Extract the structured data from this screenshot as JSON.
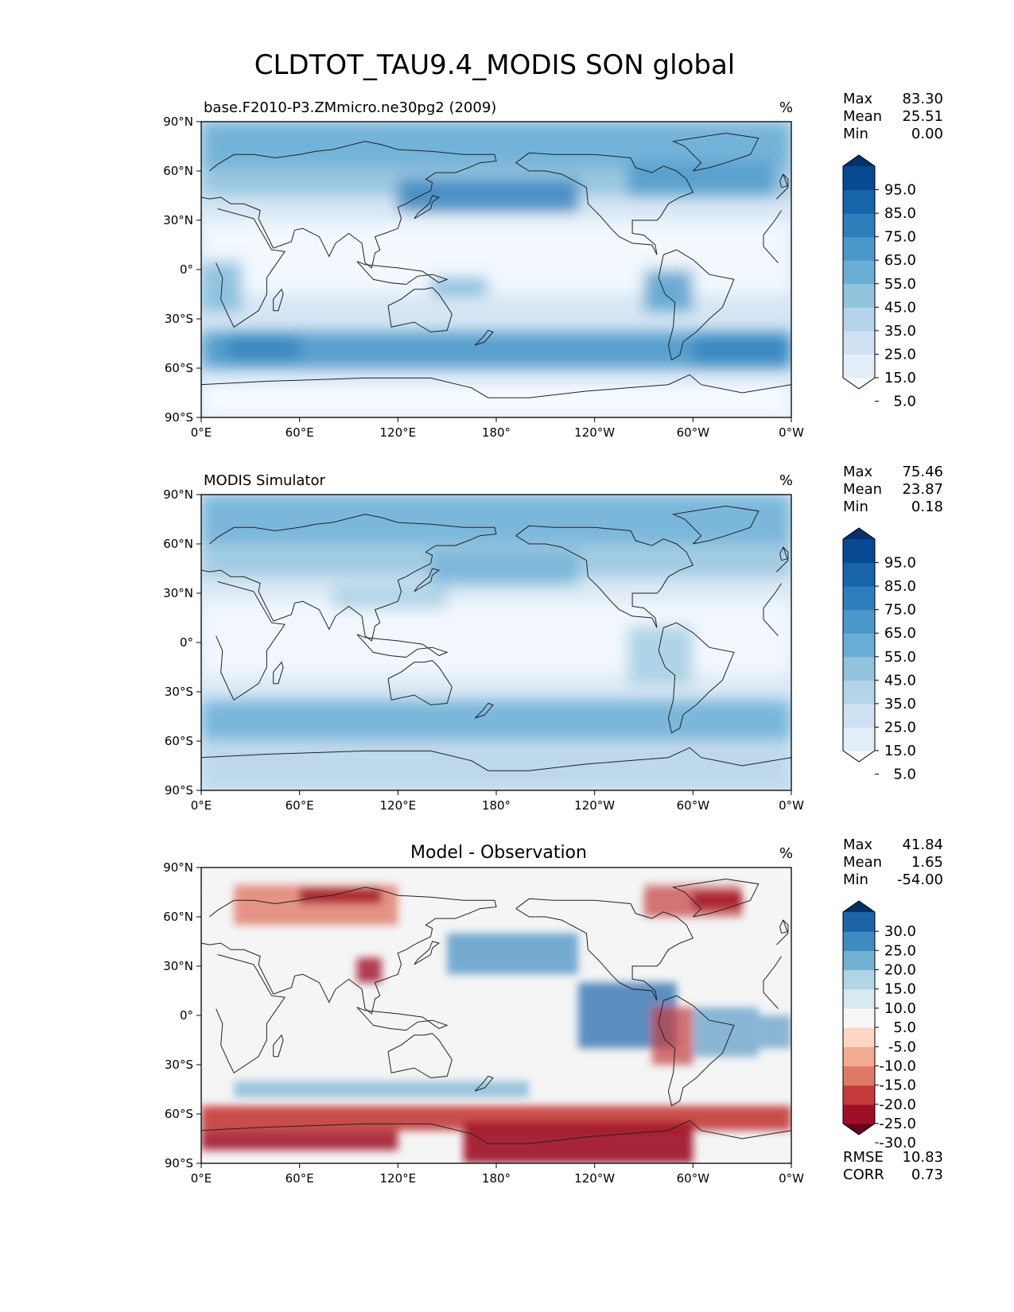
{
  "title": "CLDTOT_TAU9.4_MODIS SON global",
  "x_ticks": [
    "0°E",
    "60°E",
    "120°E",
    "180°",
    "120°W",
    "60°W",
    "0°W"
  ],
  "y_ticks": [
    "90°N",
    "60°N",
    "30°N",
    "0°",
    "30°S",
    "60°S",
    "90°S"
  ],
  "panels": [
    {
      "left_title": "base.F2010-P3.ZMmicro.ne30pg2 (2009)",
      "center_title": "",
      "units": "%",
      "stats": [
        {
          "label": "Max",
          "value": "83.30"
        },
        {
          "label": "Mean",
          "value": "25.51"
        },
        {
          "label": "Min",
          "value": "0.00"
        }
      ],
      "colorbar": {
        "ticks": [
          "95.0",
          "85.0",
          "75.0",
          "65.0",
          "55.0",
          "45.0",
          "35.0",
          "25.0",
          "15.0",
          "5.0"
        ],
        "colors": [
          "#f7fbff",
          "#e3eef9",
          "#cfe1f2",
          "#b5d4e9",
          "#93c4de",
          "#6aaed6",
          "#4a98c9",
          "#2e7ebc",
          "#1764ab",
          "#084a91",
          "#08306b"
        ]
      },
      "footer": []
    },
    {
      "left_title": "MODIS Simulator",
      "center_title": "",
      "units": "%",
      "stats": [
        {
          "label": "Max",
          "value": "75.46"
        },
        {
          "label": "Mean",
          "value": "23.87"
        },
        {
          "label": "Min",
          "value": "0.18"
        }
      ],
      "colorbar": {
        "ticks": [
          "95.0",
          "85.0",
          "75.0",
          "65.0",
          "55.0",
          "45.0",
          "35.0",
          "25.0",
          "15.0",
          "5.0"
        ],
        "colors": [
          "#f7fbff",
          "#e3eef9",
          "#cfe1f2",
          "#b5d4e9",
          "#93c4de",
          "#6aaed6",
          "#4a98c9",
          "#2e7ebc",
          "#1764ab",
          "#084a91",
          "#08306b"
        ]
      },
      "footer": []
    },
    {
      "left_title": "",
      "center_title": "Model - Observation",
      "units": "%",
      "stats": [
        {
          "label": "Max",
          "value": "41.84"
        },
        {
          "label": "Mean",
          "value": "1.65"
        },
        {
          "label": "Min",
          "value": "-54.00"
        }
      ],
      "colorbar": {
        "ticks": [
          "30.0",
          "25.0",
          "20.0",
          "15.0",
          "10.0",
          "5.0",
          "-5.0",
          "-10.0",
          "-15.0",
          "-20.0",
          "-25.0",
          "-30.0"
        ],
        "colors": [
          "#67001f",
          "#9f0f26",
          "#c53b3b",
          "#e07a68",
          "#f2ab91",
          "#fbd7c4",
          "#f7f7f7",
          "#d9e9f2",
          "#b1d4e7",
          "#74b1d4",
          "#3f8ac0",
          "#1d63a8",
          "#053061"
        ]
      },
      "footer": [
        {
          "label": "RMSE",
          "value": "10.83"
        },
        {
          "label": "CORR",
          "value": "0.73"
        }
      ]
    }
  ]
}
